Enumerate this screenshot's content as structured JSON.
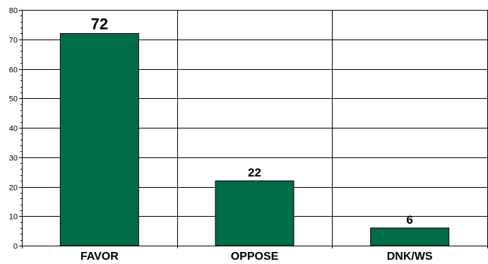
{
  "chart_data": {
    "type": "bar",
    "categories": [
      "FAVOR",
      "OPPOSE",
      "DNK/WS"
    ],
    "values": [
      72,
      22,
      6
    ],
    "data_labels": [
      "72",
      "22",
      "6"
    ],
    "title": "",
    "xlabel": "",
    "ylabel": "",
    "ylim": [
      0,
      80
    ],
    "yticks": [
      0,
      10,
      20,
      30,
      40,
      50,
      60,
      70,
      80
    ],
    "grid": true,
    "bar_color": "#006d46",
    "legend": "none"
  }
}
